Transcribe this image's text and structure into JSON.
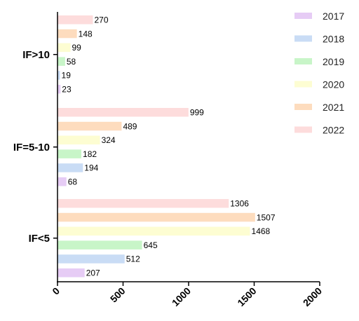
{
  "chart_data": {
    "type": "bar",
    "orientation": "horizontal",
    "title": "",
    "xlabel": "",
    "ylabel": "",
    "xlim": [
      0,
      2000
    ],
    "x_ticks": [
      "0",
      "500",
      "1000",
      "1500",
      "2000"
    ],
    "grid": false,
    "legend_placement": "top-right",
    "categories": [
      "IF>10",
      "IF=5-10",
      "IF<5"
    ],
    "series": [
      {
        "name": "2017",
        "color": "#e6ccf5",
        "values": [
          23,
          68,
          207
        ]
      },
      {
        "name": "2018",
        "color": "#c9dcf5",
        "values": [
          19,
          194,
          512
        ]
      },
      {
        "name": "2019",
        "color": "#c8f5c8",
        "values": [
          58,
          182,
          645
        ]
      },
      {
        "name": "2020",
        "color": "#fdfdd2",
        "values": [
          99,
          324,
          1468
        ]
      },
      {
        "name": "2021",
        "color": "#fddcbe",
        "values": [
          148,
          489,
          1507
        ]
      },
      {
        "name": "2022",
        "color": "#fddcdc",
        "values": [
          270,
          999,
          1306
        ]
      }
    ]
  }
}
